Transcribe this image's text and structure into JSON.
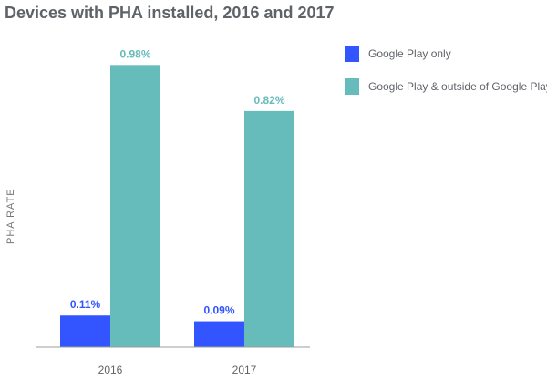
{
  "chart_data": {
    "type": "bar",
    "title": "Devices with PHA installed, 2016 and 2017",
    "ylabel": "PHA RATE",
    "xlabel": "",
    "categories": [
      "2016",
      "2017"
    ],
    "series": [
      {
        "name": "Google Play only",
        "values": [
          0.11,
          0.09
        ],
        "labels": [
          "0.11%",
          "0.09%"
        ],
        "color": "#3355ff"
      },
      {
        "name": "Google Play & outside of Google Play",
        "values": [
          0.98,
          0.82
        ],
        "labels": [
          "0.98%",
          "0.82%"
        ],
        "color": "#66bbbb"
      }
    ],
    "ylim": [
      0,
      1.0
    ],
    "grid": false,
    "legend": "top-right"
  }
}
